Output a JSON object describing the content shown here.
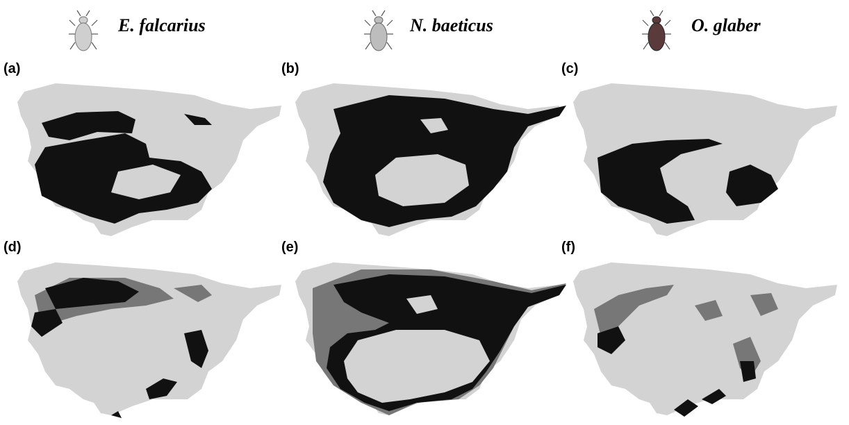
{
  "species": [
    "E. falcarius",
    "N. baeticus",
    "O. glaber"
  ],
  "panels": [
    "(a)",
    "(b)",
    "(c)",
    "(d)",
    "(e)",
    "(f)"
  ]
}
